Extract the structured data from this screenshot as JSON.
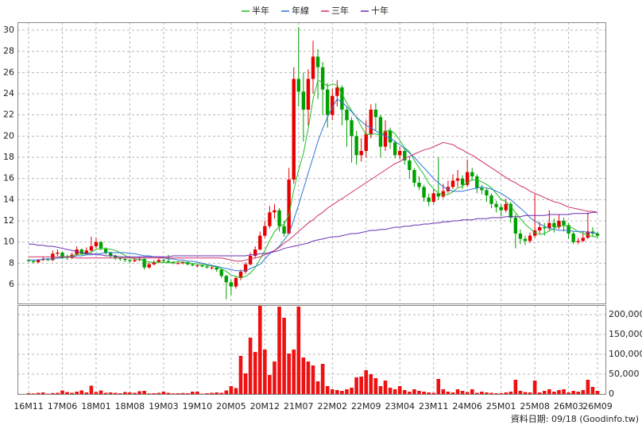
{
  "chart_data": {
    "type": "candlestick",
    "legend": "top",
    "grid": true,
    "up_color": "#e60000",
    "down_color": "#00a000",
    "footnote": "資料日期: 09/18 (Goodinfo.tw)",
    "ylim": [
      4.2,
      30.75
    ],
    "yticks": [
      6,
      8,
      10,
      12,
      14,
      16,
      18,
      20,
      22,
      24,
      26,
      28,
      30
    ],
    "categories": [
      "16M11",
      null,
      null,
      null,
      null,
      null,
      null,
      "17M06",
      null,
      null,
      null,
      null,
      null,
      null,
      "18M01",
      null,
      null,
      null,
      null,
      null,
      null,
      "18M08",
      null,
      null,
      null,
      null,
      null,
      null,
      "19M03",
      null,
      null,
      null,
      null,
      null,
      null,
      "19M10",
      null,
      null,
      null,
      null,
      null,
      null,
      "20M05",
      null,
      null,
      null,
      null,
      null,
      null,
      "20M12",
      null,
      null,
      null,
      null,
      null,
      null,
      "21M07",
      null,
      null,
      null,
      null,
      null,
      null,
      "22M02",
      null,
      null,
      null,
      null,
      null,
      null,
      "22M09",
      null,
      null,
      null,
      null,
      null,
      null,
      "23M04",
      null,
      null,
      null,
      null,
      null,
      null,
      "23M11",
      null,
      null,
      null,
      null,
      null,
      null,
      "24M06",
      null,
      null,
      null,
      null,
      null,
      null,
      "25M01",
      null,
      null,
      null,
      null,
      null,
      null,
      "25M08",
      null,
      null,
      null,
      null,
      null,
      null,
      "26M03",
      null,
      null,
      null,
      null,
      null,
      "26M09"
    ],
    "open": [
      8.3,
      8.2,
      8.1,
      8.3,
      8.4,
      8.3,
      8.9,
      9.0,
      8.6,
      8.5,
      8.8,
      9.3,
      8.9,
      9.2,
      9.6,
      10.0,
      9.4,
      9.0,
      8.7,
      8.5,
      8.4,
      8.3,
      8.2,
      8.3,
      8.4,
      7.6,
      7.9,
      8.1,
      8.3,
      8.2,
      8.1,
      8.0,
      8.0,
      8.1,
      7.9,
      7.8,
      7.8,
      7.7,
      7.6,
      7.6,
      7.4,
      6.8,
      6.2,
      5.8,
      6.6,
      7.2,
      7.9,
      8.7,
      9.3,
      10.6,
      11.5,
      12.8,
      13.0,
      11.5,
      10.8,
      15.9,
      25.4,
      24.2,
      22.5,
      25.4,
      27.5,
      26.5,
      24.4,
      22.0,
      23.8,
      24.6,
      22.5,
      21.5,
      20.0,
      18.2,
      18.6,
      20.2,
      22.5,
      21.8,
      19.0,
      20.5,
      19.4,
      18.2,
      18.6,
      17.7,
      16.8,
      15.6,
      15.2,
      14.2,
      13.8,
      14.6,
      14.3,
      14.8,
      15.2,
      15.8,
      16.0,
      15.4,
      16.6,
      16.2,
      15.1,
      14.9,
      14.4,
      13.6,
      13.3,
      13.0,
      13.6,
      12.3,
      10.8,
      10.3,
      10.1,
      10.6,
      11.1,
      11.4,
      11.3,
      11.8,
      11.4,
      12.0,
      11.6,
      10.8,
      10.0,
      10.1,
      10.4,
      11.0,
      10.8
    ],
    "high": [
      8.4,
      8.3,
      8.4,
      8.6,
      8.5,
      9.2,
      9.3,
      9.1,
      8.8,
      9.0,
      9.6,
      9.4,
      9.5,
      10.5,
      10.4,
      10.1,
      9.5,
      9.1,
      8.8,
      8.6,
      8.5,
      8.4,
      8.5,
      8.6,
      8.5,
      8.1,
      8.3,
      8.5,
      8.4,
      8.8,
      8.2,
      8.2,
      8.2,
      8.2,
      8.0,
      7.9,
      7.9,
      7.8,
      7.7,
      7.7,
      7.5,
      6.9,
      6.5,
      6.8,
      7.4,
      8.1,
      9.0,
      9.6,
      11.0,
      12.0,
      13.4,
      13.6,
      13.2,
      12.0,
      17.0,
      26.5,
      30.3,
      26.0,
      26.3,
      29.0,
      28.2,
      27.0,
      25.0,
      24.5,
      25.3,
      24.8,
      22.8,
      21.8,
      20.5,
      19.8,
      21.5,
      23.0,
      23.1,
      22.0,
      21.5,
      20.8,
      19.6,
      19.0,
      18.8,
      18.0,
      17.0,
      16.2,
      15.4,
      14.6,
      15.0,
      18.0,
      15.5,
      15.8,
      16.4,
      16.8,
      16.3,
      17.8,
      17.0,
      16.4,
      15.4,
      15.1,
      14.6,
      13.9,
      13.6,
      14.1,
      13.8,
      12.6,
      11.2,
      10.6,
      10.9,
      14.5,
      11.9,
      11.8,
      13.0,
      12.2,
      12.6,
      12.3,
      11.8,
      11.0,
      10.4,
      11.0,
      12.8,
      11.4,
      11.0
    ],
    "low": [
      8.1,
      8.0,
      8.0,
      8.2,
      8.2,
      8.2,
      8.7,
      8.4,
      8.3,
      8.4,
      8.7,
      8.8,
      8.8,
      9.1,
      9.4,
      9.2,
      8.8,
      8.5,
      8.3,
      8.2,
      8.1,
      8.0,
      8.1,
      8.2,
      7.4,
      7.5,
      7.8,
      8.0,
      8.0,
      8.0,
      7.9,
      7.9,
      7.9,
      7.8,
      7.7,
      7.6,
      7.6,
      7.5,
      7.4,
      7.2,
      6.6,
      4.6,
      5.0,
      5.6,
      6.4,
      7.0,
      7.8,
      8.5,
      9.2,
      10.4,
      11.3,
      12.2,
      11.0,
      10.5,
      10.8,
      15.5,
      22.8,
      19.5,
      21.0,
      24.0,
      23.5,
      22.0,
      20.8,
      21.5,
      22.8,
      21.0,
      19.0,
      17.5,
      17.3,
      17.6,
      18.0,
      19.8,
      20.5,
      18.0,
      18.6,
      18.8,
      17.9,
      17.8,
      17.3,
      16.0,
      15.2,
      14.9,
      13.8,
      13.4,
      13.6,
      14.0,
      14.1,
      14.6,
      15.0,
      15.2,
      15.0,
      15.2,
      15.8,
      14.6,
      14.5,
      13.8,
      13.2,
      12.8,
      12.4,
      12.8,
      11.8,
      9.4,
      9.8,
      9.7,
      9.9,
      10.4,
      10.8,
      10.6,
      11.0,
      10.9,
      11.2,
      11.0,
      10.3,
      9.8,
      9.8,
      10.0,
      10.3,
      10.5,
      10.4
    ],
    "close": [
      8.2,
      8.1,
      8.3,
      8.4,
      8.3,
      8.9,
      9.0,
      8.6,
      8.5,
      8.8,
      9.3,
      8.9,
      9.2,
      9.6,
      10.0,
      9.4,
      9.0,
      8.7,
      8.5,
      8.4,
      8.3,
      8.2,
      8.3,
      8.4,
      7.6,
      7.9,
      8.1,
      8.3,
      8.2,
      8.1,
      8.0,
      8.0,
      8.1,
      7.9,
      7.8,
      7.8,
      7.7,
      7.6,
      7.6,
      7.4,
      6.8,
      6.2,
      5.8,
      6.6,
      7.2,
      7.9,
      8.7,
      9.3,
      10.6,
      11.5,
      12.8,
      13.0,
      11.5,
      10.8,
      15.9,
      25.4,
      24.2,
      22.5,
      25.4,
      27.5,
      26.5,
      24.4,
      22.0,
      23.8,
      24.6,
      22.5,
      21.5,
      20.0,
      18.2,
      18.6,
      20.2,
      22.5,
      21.8,
      19.0,
      20.5,
      19.4,
      18.2,
      18.6,
      17.7,
      16.8,
      15.6,
      15.2,
      14.2,
      13.8,
      14.6,
      14.3,
      14.8,
      15.2,
      15.8,
      16.0,
      15.4,
      16.6,
      16.2,
      15.1,
      14.9,
      14.4,
      13.6,
      13.3,
      13.0,
      13.6,
      12.3,
      10.8,
      10.3,
      10.1,
      10.6,
      11.1,
      11.4,
      11.3,
      11.8,
      11.4,
      12.0,
      11.6,
      10.8,
      10.0,
      10.1,
      10.4,
      11.0,
      10.8,
      10.6
    ],
    "series": [
      {
        "name": "半年",
        "color": "#1fbf1f",
        "values": [
          null,
          null,
          null,
          null,
          null,
          8.37,
          8.5,
          8.58,
          8.62,
          8.68,
          8.85,
          8.85,
          8.88,
          9.05,
          9.3,
          9.4,
          9.35,
          9.32,
          9.2,
          9.0,
          8.72,
          8.52,
          8.4,
          8.35,
          8.2,
          8.12,
          8.08,
          8.1,
          8.08,
          8.03,
          8.1,
          8.12,
          8.12,
          8.05,
          7.98,
          7.93,
          7.88,
          7.82,
          7.73,
          7.65,
          7.48,
          7.22,
          6.9,
          6.73,
          6.67,
          6.75,
          7.07,
          7.58,
          8.38,
          9.2,
          10.13,
          10.98,
          11.45,
          11.7,
          12.58,
          14.9,
          16.8,
          18.38,
          20.7,
          23.48,
          25.25,
          25.08,
          24.72,
          24.93,
          24.8,
          23.97,
          23.13,
          22.4,
          21.77,
          20.9,
          20.17,
          20.17,
          20.22,
          20.05,
          20.43,
          20.57,
          20.23,
          19.58,
          18.9,
          18.53,
          17.72,
          17.02,
          16.35,
          15.55,
          15.03,
          14.62,
          14.48,
          14.48,
          14.75,
          15.12,
          15.25,
          15.63,
          15.87,
          15.85,
          15.7,
          15.43,
          15.13,
          14.58,
          14.05,
          13.8,
          13.37,
          12.77,
          12.22,
          11.68,
          11.28,
          10.87,
          10.72,
          10.8,
          11.05,
          11.27,
          11.5,
          11.58,
          11.48,
          11.27,
          10.98,
          10.82,
          10.65,
          10.52,
          10.48
        ]
      },
      {
        "name": "年線",
        "color": "#2f74d6",
        "values": [
          8.3,
          8.3,
          8.3,
          8.4,
          8.4,
          8.4,
          8.5,
          8.5,
          8.6,
          8.6,
          8.7,
          8.7,
          8.8,
          8.8,
          8.9,
          8.9,
          9.0,
          9.0,
          9.0,
          9.0,
          9.0,
          8.9,
          8.9,
          8.8,
          8.7,
          8.7,
          8.6,
          8.6,
          8.5,
          8.4,
          8.4,
          8.3,
          8.3,
          8.2,
          8.2,
          8.1,
          8.0,
          7.9,
          7.8,
          7.7,
          7.6,
          7.5,
          7.4,
          7.3,
          7.3,
          7.3,
          7.5,
          7.7,
          7.9,
          8.4,
          8.9,
          9.2,
          9.6,
          10.2,
          10.8,
          12.1,
          13.5,
          15.0,
          16.5,
          18.0,
          19.5,
          20.7,
          21.8,
          22.7,
          23.5,
          23.2,
          22.8,
          22.3,
          21.8,
          21.4,
          21.0,
          20.8,
          20.5,
          20.2,
          20.0,
          19.8,
          19.5,
          19.2,
          18.8,
          18.4,
          18.0,
          17.5,
          17.0,
          16.5,
          16.0,
          15.6,
          15.2,
          15.0,
          14.8,
          14.8,
          14.8,
          14.9,
          15.0,
          15.1,
          15.2,
          15.1,
          15.0,
          14.8,
          14.6,
          14.3,
          14.0,
          13.6,
          13.2,
          12.8,
          12.3,
          12.0,
          11.7,
          11.5,
          11.3,
          11.2,
          11.1,
          11.1,
          11.1,
          11.0,
          11.0,
          11.0,
          10.9,
          10.9,
          10.8
        ]
      },
      {
        "name": "三年",
        "color": "#d0306a",
        "values": [
          8.6,
          8.6,
          8.6,
          8.6,
          8.6,
          8.6,
          8.6,
          8.6,
          8.6,
          8.6,
          8.5,
          8.5,
          8.5,
          8.5,
          8.5,
          8.5,
          8.5,
          8.5,
          8.5,
          8.5,
          8.5,
          8.5,
          8.5,
          8.5,
          8.5,
          8.5,
          8.5,
          8.5,
          8.5,
          8.5,
          8.5,
          8.5,
          8.5,
          8.5,
          8.5,
          8.5,
          8.5,
          8.5,
          8.5,
          8.5,
          8.5,
          8.4,
          8.3,
          8.2,
          8.2,
          8.3,
          8.4,
          8.5,
          8.6,
          8.8,
          9.0,
          9.2,
          9.5,
          9.9,
          10.2,
          10.6,
          11.0,
          11.4,
          11.8,
          12.1,
          12.5,
          12.8,
          13.2,
          13.5,
          13.8,
          14.1,
          14.4,
          14.7,
          15.0,
          15.3,
          15.6,
          15.9,
          16.2,
          16.5,
          16.8,
          17.1,
          17.4,
          17.6,
          17.9,
          18.1,
          18.3,
          18.5,
          18.7,
          18.8,
          19.0,
          19.2,
          19.4,
          19.3,
          19.2,
          18.9,
          18.7,
          18.4,
          18.2,
          17.9,
          17.6,
          17.3,
          17.0,
          16.7,
          16.4,
          16.1,
          15.8,
          15.6,
          15.3,
          15.1,
          14.8,
          14.6,
          14.4,
          14.2,
          14.0,
          13.8,
          13.7,
          13.5,
          13.3,
          13.2,
          13.1,
          13.0,
          12.9,
          12.9,
          12.8
        ]
      },
      {
        "name": "十年",
        "color": "#6a2bb0",
        "values": [
          9.8,
          9.8,
          9.7,
          9.7,
          9.6,
          9.6,
          9.5,
          9.4,
          9.3,
          9.2,
          9.1,
          9.0,
          8.9,
          8.9,
          8.8,
          8.8,
          8.7,
          8.7,
          8.7,
          8.6,
          8.6,
          8.6,
          8.6,
          8.6,
          8.6,
          8.6,
          8.6,
          8.6,
          8.6,
          8.6,
          8.7,
          8.7,
          8.7,
          8.7,
          8.7,
          8.7,
          8.7,
          8.7,
          8.7,
          8.7,
          8.7,
          8.7,
          8.7,
          8.7,
          8.7,
          8.7,
          8.8,
          8.8,
          8.9,
          8.9,
          9.0,
          9.1,
          9.2,
          9.4,
          9.5,
          9.6,
          9.7,
          9.8,
          9.9,
          10.1,
          10.2,
          10.3,
          10.4,
          10.5,
          10.5,
          10.6,
          10.7,
          10.8,
          10.8,
          10.9,
          11.0,
          11.1,
          11.1,
          11.2,
          11.2,
          11.3,
          11.4,
          11.4,
          11.5,
          11.5,
          11.6,
          11.6,
          11.7,
          11.7,
          11.8,
          11.8,
          11.9,
          11.9,
          12.0,
          12.0,
          12.1,
          12.1,
          12.1,
          12.2,
          12.2,
          12.2,
          12.3,
          12.3,
          12.3,
          12.4,
          12.4,
          12.4,
          12.4,
          12.5,
          12.5,
          12.5,
          12.5,
          12.5,
          12.6,
          12.6,
          12.6,
          12.6,
          12.6,
          12.7,
          12.7,
          12.7,
          12.7,
          12.8,
          12.8
        ]
      }
    ],
    "volume": {
      "color": "#ee1111",
      "ylim": [
        0,
        224000
      ],
      "yticks": [
        0,
        {
          "value": 50000,
          "label": "50,000"
        },
        {
          "value": 100000,
          "label": "100,000"
        },
        {
          "value": 150000,
          "label": "150,000"
        },
        {
          "value": 200000,
          "label": "200,000"
        }
      ],
      "values": [
        2000,
        1500,
        3000,
        4000,
        1000,
        2500,
        3000,
        9000,
        5000,
        3000,
        6000,
        9000,
        4000,
        21000,
        5000,
        9000,
        3000,
        4000,
        3000,
        2000,
        5000,
        4000,
        3000,
        7000,
        8000,
        1500,
        2000,
        3000,
        6000,
        3000,
        1500,
        2000,
        2500,
        2000,
        6000,
        6000,
        1000,
        2000,
        3000,
        4000,
        3000,
        9000,
        20000,
        15000,
        96000,
        52000,
        142000,
        106000,
        222000,
        112000,
        48000,
        82000,
        220000,
        192000,
        102000,
        112000,
        220000,
        92000,
        82000,
        72000,
        32000,
        76000,
        20000,
        12000,
        10000,
        8000,
        12000,
        16000,
        42000,
        44000,
        60000,
        50000,
        40000,
        20000,
        34000,
        16000,
        12000,
        20000,
        10000,
        6000,
        12000,
        8000,
        6000,
        4000,
        3000,
        38000,
        12000,
        6000,
        4000,
        12000,
        8000,
        5000,
        12000,
        3000,
        6000,
        4000,
        3000,
        2000,
        2000,
        4000,
        6000,
        36000,
        8000,
        5000,
        4000,
        34000,
        4000,
        8000,
        12000,
        6000,
        10000,
        12000,
        4000,
        8000,
        6000,
        10000,
        36000,
        18000,
        8000
      ]
    }
  }
}
